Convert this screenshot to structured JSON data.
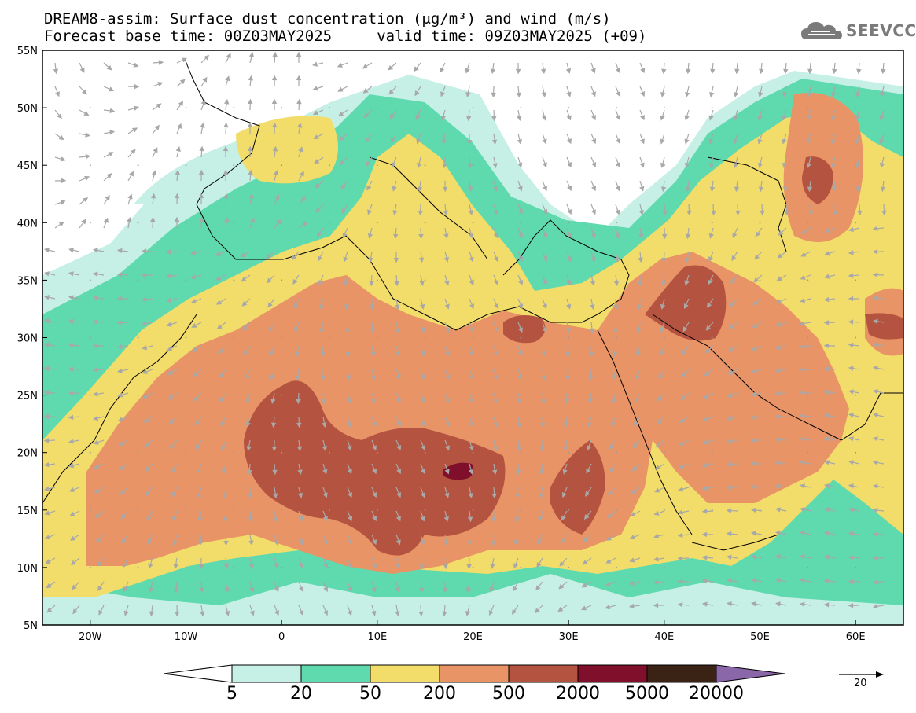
{
  "header": {
    "title_line1": "DREAM8-assim: Surface dust concentration (μg/m³) and wind (m/s)",
    "title_line2": "Forecast base time: 00Z03MAY2025     valid time: 09Z03MAY2025 (+09)",
    "logo_text": "SEEVCCC",
    "logo_icon": "cloud-icon"
  },
  "map": {
    "lon_range": [
      -25,
      65
    ],
    "lat_range": [
      5,
      55
    ],
    "lat_labels": [
      "55N",
      "50N",
      "45N",
      "40N",
      "35N",
      "30N",
      "25N",
      "20N",
      "15N",
      "10N",
      "5N"
    ],
    "lon_labels": [
      "20W",
      "10W",
      "0",
      "10E",
      "20E",
      "30E",
      "40E",
      "50E",
      "60E"
    ],
    "background": "#ffffff",
    "coast_color": "#000000",
    "arrow_color": "#a8a8a8"
  },
  "colorbar": {
    "labels": [
      "5",
      "20",
      "50",
      "200",
      "500",
      "2000",
      "5000",
      "20000"
    ],
    "colors": [
      "#c6f0e6",
      "#5fd9ae",
      "#f2dd6a",
      "#e89467",
      "#b45340",
      "#7f0f2a",
      "#3a2214",
      "#8a67a8"
    ],
    "under_color": "#ffffff",
    "over_color": "#8a67a8"
  },
  "wind_reference": {
    "label": "20",
    "icon": "arrow-right-icon"
  }
}
